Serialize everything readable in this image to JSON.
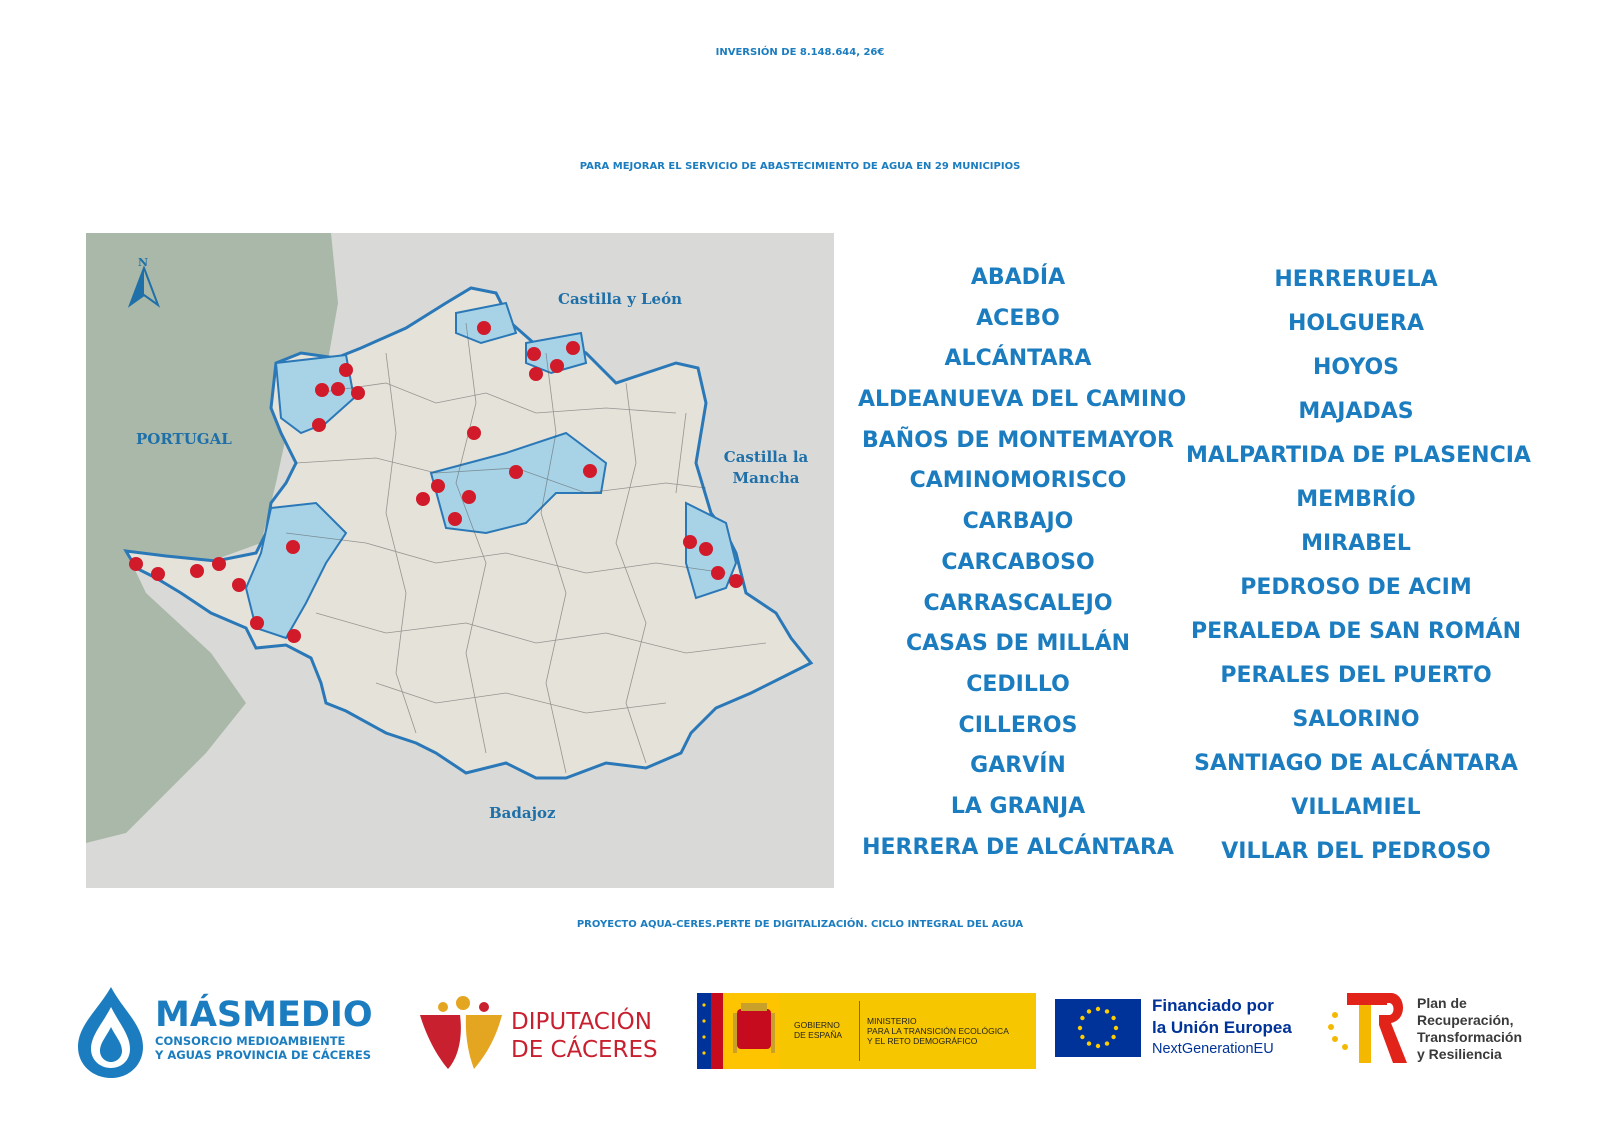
{
  "title": "INVERSIÓN DE 8.148.644, 26€",
  "subtitle": "PARA MEJORAR EL SERVICIO DE ABASTECIMIENTO DE AGUA EN 29 MUNICIPIOS",
  "map": {
    "labels": {
      "north": "N",
      "portugal": "PORTUGAL",
      "castilla_leon": "Castilla y León",
      "castilla_mancha_1": "Castilla la",
      "castilla_mancha_2": "Mancha",
      "badajoz": "Badajoz"
    },
    "colors": {
      "outside": "#d9dad7",
      "portugal": "#a9b8a8",
      "province": "#e6e4dc",
      "border": "#2a78b7",
      "zone": "#a8d3e6",
      "marker": "#d11a2a"
    },
    "marker_count": 29
  },
  "municipalities": {
    "column1": [
      "ABADÍA",
      "ACEBO",
      "ALCÁNTARA",
      "ALDEANUEVA DEL CAMINO",
      "BAÑOS DE MONTEMAYOR",
      "CAMINOMORISCO",
      "CARBAJO",
      "CARCABOSO",
      "CARRASCALEJO",
      "CASAS DE MILLÁN",
      "CEDILLO",
      "CILLEROS",
      "GARVÍN",
      "LA GRANJA",
      "HERRERA DE ALCÁNTARA"
    ],
    "column2": [
      "HERRERUELA",
      "HOLGUERA",
      "HOYOS",
      "MAJADAS",
      "MALPARTIDA DE PLASENCIA",
      "MEMBRÍO",
      "MIRABEL",
      "PEDROSO DE ACIM",
      "PERALEDA DE SAN ROMÁN",
      "PERALES DEL PUERTO",
      "SALORINO",
      "SANTIAGO DE ALCÁNTARA",
      "VILLAMIEL",
      "VILLAR DEL PEDROSO"
    ]
  },
  "project": "PROYECTO AQUA-CERES.PERTE DE DIGITALIZACIÓN. CICLO INTEGRAL DEL AGUA",
  "logos": {
    "masmedio": {
      "name": "MÁSMEDIO",
      "sub1": "CONSORCIO MEDIOAMBIENTE",
      "sub2": "Y AGUAS PROVINCIA DE CÁCERES"
    },
    "diputacion": {
      "line1": "DIPUTACIÓN",
      "line2": "DE CÁCERES"
    },
    "gobierno": {
      "gob1": "GOBIERNO",
      "gob2": "DE ESPAÑA",
      "min1": "MINISTERIO",
      "min2": "PARA LA TRANSICIÓN ECOLÓGICA",
      "min3": "Y EL RETO DEMOGRÁFICO"
    },
    "eu": {
      "line1": "Financiado por",
      "line2": "la Unión Europea",
      "line3": "NextGenerationEU"
    },
    "prtr": {
      "line1": "Plan de",
      "line2": "Recuperación,",
      "line3": "Transformación",
      "line4": "y Resiliencia"
    }
  }
}
